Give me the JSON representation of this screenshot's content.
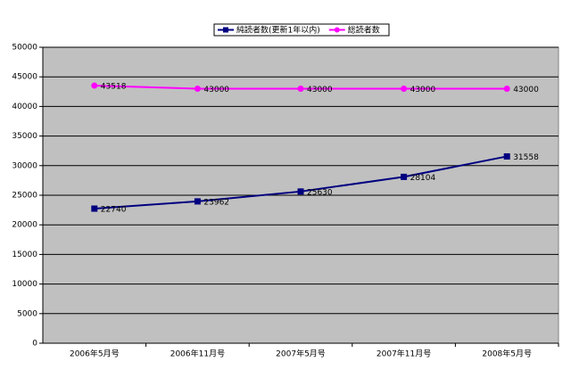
{
  "chart_data": {
    "type": "line",
    "categories": [
      "2006年5月号",
      "2006年11月号",
      "2007年5月号",
      "2007年11月号",
      "2008年5月号"
    ],
    "series": [
      {
        "name": "純読者数(更新1年以内)",
        "color": "#000080",
        "marker": "square",
        "values": [
          22740,
          23962,
          25630,
          28104,
          31558
        ]
      },
      {
        "name": "総読者数",
        "color": "#ff00ff",
        "marker": "circle",
        "values": [
          43518,
          43000,
          43000,
          43000,
          43000
        ]
      }
    ],
    "ylim": [
      0,
      50000
    ],
    "yticks": [
      0,
      5000,
      10000,
      15000,
      20000,
      25000,
      30000,
      35000,
      40000,
      45000,
      50000
    ],
    "grid": true,
    "legend": "top",
    "data_labels": true
  }
}
